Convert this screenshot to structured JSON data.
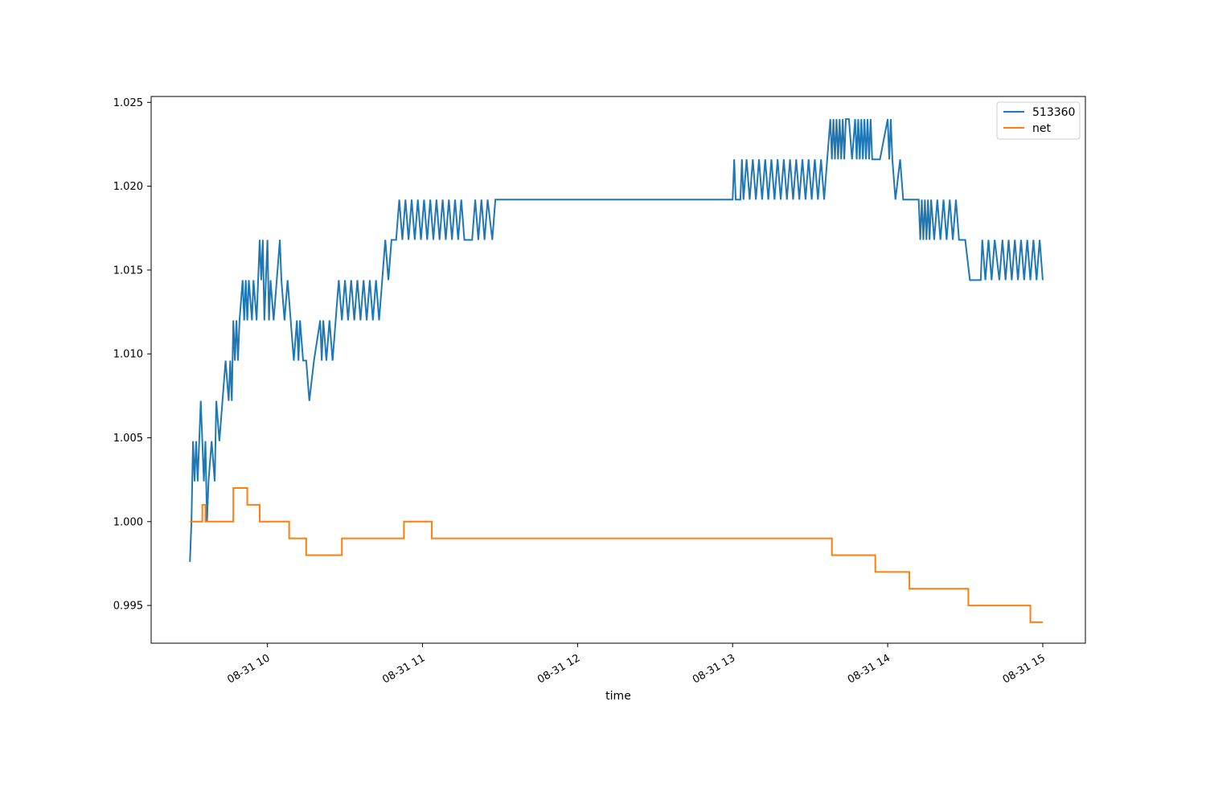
{
  "chart_data": {
    "type": "line",
    "title": "",
    "xlabel": "time",
    "ylabel": "",
    "x_ticks": [
      {
        "label": "08-31 10",
        "hour": 10
      },
      {
        "label": "08-31 11",
        "hour": 11
      },
      {
        "label": "08-31 12",
        "hour": 12
      },
      {
        "label": "08-31 13",
        "hour": 13
      },
      {
        "label": "08-31 14",
        "hour": 14
      },
      {
        "label": "08-31 15",
        "hour": 15
      }
    ],
    "xlim_hours": [
      9.25,
      15.275
    ],
    "y_ticks": [
      "0.995",
      "1.000",
      "1.005",
      "1.010",
      "1.015",
      "1.020",
      "1.025"
    ],
    "ylim": [
      0.99275,
      1.02535
    ],
    "legend": {
      "position": "top-right",
      "entries": [
        "513360",
        "net"
      ]
    },
    "series": [
      {
        "name": "513360",
        "color": "#1f77b4",
        "points": [
          [
            9.5,
            0.9976
          ],
          [
            9.51,
            1.0
          ],
          [
            9.52,
            1.0048
          ],
          [
            9.53,
            1.0024
          ],
          [
            9.54,
            1.0048
          ],
          [
            9.55,
            1.0024
          ],
          [
            9.57,
            1.0072
          ],
          [
            9.58,
            1.0048
          ],
          [
            9.59,
            1.0024
          ],
          [
            9.6,
            1.0048
          ],
          [
            9.61,
            1.0
          ],
          [
            9.62,
            1.0024
          ],
          [
            9.64,
            1.0048
          ],
          [
            9.66,
            1.0024
          ],
          [
            9.67,
            1.0072
          ],
          [
            9.69,
            1.0048
          ],
          [
            9.71,
            1.0072
          ],
          [
            9.73,
            1.0096
          ],
          [
            9.75,
            1.0072
          ],
          [
            9.76,
            1.0096
          ],
          [
            9.77,
            1.0072
          ],
          [
            9.78,
            1.012
          ],
          [
            9.79,
            1.0096
          ],
          [
            9.8,
            1.012
          ],
          [
            9.81,
            1.0096
          ],
          [
            9.82,
            1.012
          ],
          [
            9.84,
            1.0144
          ],
          [
            9.85,
            1.012
          ],
          [
            9.86,
            1.0144
          ],
          [
            9.87,
            1.012
          ],
          [
            9.88,
            1.0144
          ],
          [
            9.9,
            1.012
          ],
          [
            9.91,
            1.0144
          ],
          [
            9.93,
            1.012
          ],
          [
            9.95,
            1.0168
          ],
          [
            9.96,
            1.0144
          ],
          [
            9.97,
            1.0168
          ],
          [
            9.98,
            1.012
          ],
          [
            9.99,
            1.0144
          ],
          [
            10.0,
            1.0168
          ],
          [
            10.01,
            1.012
          ],
          [
            10.02,
            1.0144
          ],
          [
            10.04,
            1.012
          ],
          [
            10.06,
            1.0144
          ],
          [
            10.08,
            1.0168
          ],
          [
            10.09,
            1.0144
          ],
          [
            10.11,
            1.012
          ],
          [
            10.13,
            1.0144
          ],
          [
            10.15,
            1.012
          ],
          [
            10.17,
            1.0096
          ],
          [
            10.19,
            1.012
          ],
          [
            10.2,
            1.0096
          ],
          [
            10.21,
            1.012
          ],
          [
            10.23,
            1.0096
          ],
          [
            10.25,
            1.0096
          ],
          [
            10.27,
            1.0072
          ],
          [
            10.3,
            1.0096
          ],
          [
            10.34,
            1.012
          ],
          [
            10.35,
            1.0096
          ],
          [
            10.36,
            1.012
          ],
          [
            10.38,
            1.0096
          ],
          [
            10.4,
            1.012
          ],
          [
            10.42,
            1.0096
          ],
          [
            10.44,
            1.012
          ],
          [
            10.46,
            1.0144
          ],
          [
            10.48,
            1.012
          ],
          [
            10.5,
            1.0144
          ],
          [
            10.52,
            1.012
          ],
          [
            10.54,
            1.0144
          ],
          [
            10.56,
            1.012
          ],
          [
            10.58,
            1.0144
          ],
          [
            10.6,
            1.012
          ],
          [
            10.62,
            1.0144
          ],
          [
            10.64,
            1.012
          ],
          [
            10.66,
            1.0144
          ],
          [
            10.68,
            1.012
          ],
          [
            10.7,
            1.0144
          ],
          [
            10.72,
            1.012
          ],
          [
            10.74,
            1.0144
          ],
          [
            10.76,
            1.0168
          ],
          [
            10.78,
            1.0144
          ],
          [
            10.8,
            1.0168
          ],
          [
            10.83,
            1.0168
          ],
          [
            10.85,
            1.0192
          ],
          [
            10.87,
            1.0168
          ],
          [
            10.89,
            1.0192
          ],
          [
            10.91,
            1.0168
          ],
          [
            10.93,
            1.0192
          ],
          [
            10.95,
            1.0168
          ],
          [
            10.97,
            1.0192
          ],
          [
            10.99,
            1.0168
          ],
          [
            11.01,
            1.0192
          ],
          [
            11.03,
            1.0168
          ],
          [
            11.05,
            1.0192
          ],
          [
            11.07,
            1.0168
          ],
          [
            11.09,
            1.0192
          ],
          [
            11.11,
            1.0168
          ],
          [
            11.13,
            1.0192
          ],
          [
            11.15,
            1.0168
          ],
          [
            11.17,
            1.0192
          ],
          [
            11.19,
            1.0168
          ],
          [
            11.21,
            1.0192
          ],
          [
            11.23,
            1.0168
          ],
          [
            11.25,
            1.0192
          ],
          [
            11.27,
            1.0168
          ],
          [
            11.3,
            1.0168
          ],
          [
            11.32,
            1.0168
          ],
          [
            11.34,
            1.0192
          ],
          [
            11.36,
            1.0168
          ],
          [
            11.38,
            1.0192
          ],
          [
            11.4,
            1.0168
          ],
          [
            11.42,
            1.0192
          ],
          [
            11.45,
            1.0168
          ],
          [
            11.47,
            1.0192
          ],
          [
            12.5,
            1.0192
          ],
          [
            13.0,
            1.0192
          ],
          [
            13.01,
            1.0216
          ],
          [
            13.02,
            1.0192
          ],
          [
            13.05,
            1.0192
          ],
          [
            13.06,
            1.0216
          ],
          [
            13.07,
            1.0192
          ],
          [
            13.09,
            1.0216
          ],
          [
            13.11,
            1.0192
          ],
          [
            13.13,
            1.0216
          ],
          [
            13.15,
            1.0192
          ],
          [
            13.17,
            1.0216
          ],
          [
            13.19,
            1.0192
          ],
          [
            13.21,
            1.0216
          ],
          [
            13.23,
            1.0192
          ],
          [
            13.25,
            1.0216
          ],
          [
            13.27,
            1.0192
          ],
          [
            13.29,
            1.0216
          ],
          [
            13.31,
            1.0192
          ],
          [
            13.33,
            1.0216
          ],
          [
            13.35,
            1.0192
          ],
          [
            13.37,
            1.0216
          ],
          [
            13.39,
            1.0192
          ],
          [
            13.41,
            1.0216
          ],
          [
            13.43,
            1.0192
          ],
          [
            13.45,
            1.0216
          ],
          [
            13.47,
            1.0192
          ],
          [
            13.49,
            1.0216
          ],
          [
            13.51,
            1.0192
          ],
          [
            13.53,
            1.0216
          ],
          [
            13.55,
            1.0192
          ],
          [
            13.57,
            1.0216
          ],
          [
            13.59,
            1.0192
          ],
          [
            13.61,
            1.0216
          ],
          [
            13.63,
            1.024
          ],
          [
            13.64,
            1.0216
          ],
          [
            13.65,
            1.024
          ],
          [
            13.66,
            1.0216
          ],
          [
            13.67,
            1.024
          ],
          [
            13.68,
            1.0216
          ],
          [
            13.69,
            1.024
          ],
          [
            13.7,
            1.0216
          ],
          [
            13.71,
            1.024
          ],
          [
            13.72,
            1.0216
          ],
          [
            13.73,
            1.024
          ],
          [
            13.75,
            1.024
          ],
          [
            13.77,
            1.0216
          ],
          [
            13.79,
            1.024
          ],
          [
            13.8,
            1.0216
          ],
          [
            13.81,
            1.024
          ],
          [
            13.82,
            1.0216
          ],
          [
            13.83,
            1.024
          ],
          [
            13.84,
            1.0216
          ],
          [
            13.85,
            1.024
          ],
          [
            13.86,
            1.0216
          ],
          [
            13.87,
            1.024
          ],
          [
            13.88,
            1.0216
          ],
          [
            13.89,
            1.024
          ],
          [
            13.9,
            1.0216
          ],
          [
            13.95,
            1.0216
          ],
          [
            14.0,
            1.024
          ],
          [
            14.01,
            1.0216
          ],
          [
            14.02,
            1.024
          ],
          [
            14.03,
            1.0216
          ],
          [
            14.05,
            1.0192
          ],
          [
            14.08,
            1.0216
          ],
          [
            14.1,
            1.0192
          ],
          [
            14.2,
            1.0192
          ],
          [
            14.21,
            1.0168
          ],
          [
            14.22,
            1.0192
          ],
          [
            14.23,
            1.0168
          ],
          [
            14.24,
            1.0192
          ],
          [
            14.25,
            1.0168
          ],
          [
            14.26,
            1.0192
          ],
          [
            14.27,
            1.0168
          ],
          [
            14.28,
            1.0192
          ],
          [
            14.3,
            1.0168
          ],
          [
            14.32,
            1.0192
          ],
          [
            14.34,
            1.0168
          ],
          [
            14.36,
            1.0192
          ],
          [
            14.38,
            1.0168
          ],
          [
            14.4,
            1.0192
          ],
          [
            14.42,
            1.0168
          ],
          [
            14.44,
            1.0192
          ],
          [
            14.46,
            1.0168
          ],
          [
            14.5,
            1.0168
          ],
          [
            14.53,
            1.0144
          ],
          [
            14.6,
            1.0144
          ],
          [
            14.61,
            1.0168
          ],
          [
            14.63,
            1.0144
          ],
          [
            14.65,
            1.0168
          ],
          [
            14.67,
            1.0144
          ],
          [
            14.69,
            1.0168
          ],
          [
            14.72,
            1.0144
          ],
          [
            14.74,
            1.0168
          ],
          [
            14.76,
            1.0144
          ],
          [
            14.78,
            1.0168
          ],
          [
            14.8,
            1.0144
          ],
          [
            14.82,
            1.0168
          ],
          [
            14.84,
            1.0144
          ],
          [
            14.86,
            1.0168
          ],
          [
            14.88,
            1.0144
          ],
          [
            14.9,
            1.0168
          ],
          [
            14.92,
            1.0144
          ],
          [
            14.94,
            1.0168
          ],
          [
            14.96,
            1.0144
          ],
          [
            14.98,
            1.0168
          ],
          [
            15.0,
            1.0144
          ]
        ]
      },
      {
        "name": "net",
        "color": "#ff7f0e",
        "points": [
          [
            9.5,
            1.0
          ],
          [
            9.58,
            1.0
          ],
          [
            9.58,
            1.001
          ],
          [
            9.6,
            1.001
          ],
          [
            9.6,
            1.0
          ],
          [
            9.78,
            1.0
          ],
          [
            9.78,
            1.002
          ],
          [
            9.87,
            1.002
          ],
          [
            9.87,
            1.001
          ],
          [
            9.95,
            1.001
          ],
          [
            9.95,
            1.0
          ],
          [
            10.14,
            1.0
          ],
          [
            10.14,
            0.999
          ],
          [
            10.25,
            0.999
          ],
          [
            10.25,
            0.998
          ],
          [
            10.48,
            0.998
          ],
          [
            10.48,
            0.999
          ],
          [
            10.88,
            0.999
          ],
          [
            10.88,
            1.0
          ],
          [
            11.06,
            1.0
          ],
          [
            11.06,
            0.999
          ],
          [
            13.64,
            0.999
          ],
          [
            13.64,
            0.998
          ],
          [
            13.92,
            0.998
          ],
          [
            13.92,
            0.997
          ],
          [
            14.14,
            0.997
          ],
          [
            14.14,
            0.996
          ],
          [
            14.52,
            0.996
          ],
          [
            14.52,
            0.995
          ],
          [
            14.92,
            0.995
          ],
          [
            14.92,
            0.994
          ],
          [
            15.0,
            0.994
          ]
        ]
      }
    ]
  }
}
